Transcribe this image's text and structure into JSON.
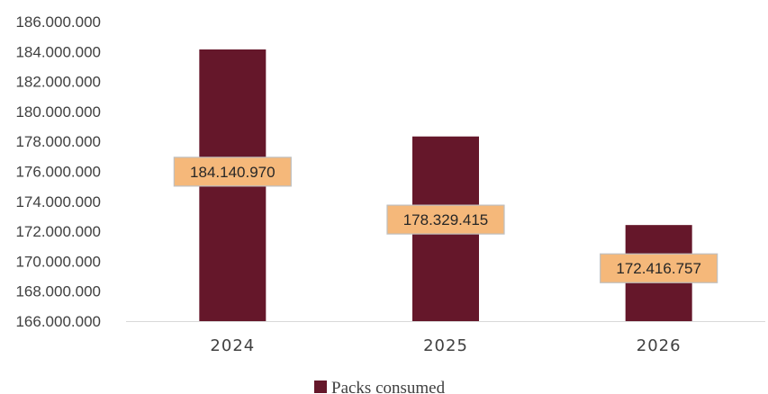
{
  "chart_data": {
    "type": "bar",
    "title": "",
    "xlabel": "",
    "ylabel": "",
    "categories": [
      "2024",
      "2025",
      "2026"
    ],
    "series": [
      {
        "name": "Packs consumed",
        "values": [
          184140970,
          178329415,
          172416757
        ]
      }
    ],
    "data_labels": [
      "184.140.970",
      "178.329.415",
      "172.416.757"
    ],
    "ylim": [
      166000000,
      186000000
    ],
    "y_ticks": [
      166000000,
      168000000,
      170000000,
      172000000,
      174000000,
      176000000,
      178000000,
      180000000,
      182000000,
      184000000,
      186000000
    ],
    "y_tick_labels": [
      "166.000.000",
      "168.000.000",
      "170.000.000",
      "172.000.000",
      "174.000.000",
      "176.000.000",
      "178.000.000",
      "180.000.000",
      "182.000.000",
      "184.000.000",
      "186.000.000"
    ],
    "grid": false,
    "legend_position": "bottom",
    "colors": {
      "bar": "#65172a",
      "label_bg": "#f5b87a",
      "label_border": "#bfbfbf",
      "axis": "#d9d9d9"
    }
  }
}
